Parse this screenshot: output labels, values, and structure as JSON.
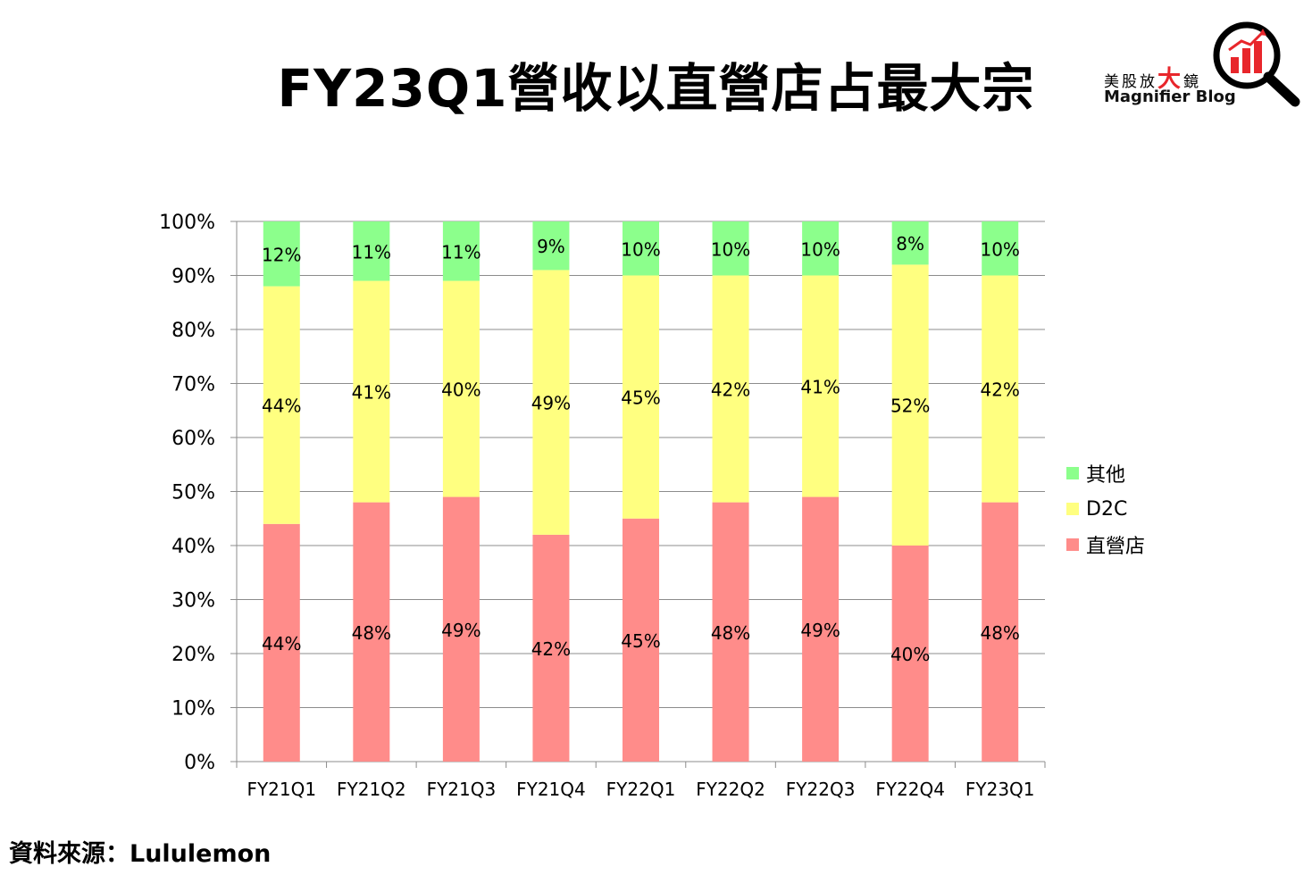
{
  "header": {
    "title": "FY23Q1營收以直營店占最大宗"
  },
  "logo": {
    "line1_a": "美股放",
    "line1_big": "大",
    "line1_b": "鏡",
    "line2": "Magnifier Blog",
    "icon": "magnifier-bar-chart-icon"
  },
  "colors": {
    "store": "#ff8c8a",
    "d2c": "#ffff80",
    "other": "#8cff8c"
  },
  "chart_data": {
    "type": "bar",
    "stacked": true,
    "categories": [
      "FY21Q1",
      "FY21Q2",
      "FY21Q3",
      "FY21Q4",
      "FY22Q1",
      "FY22Q2",
      "FY22Q3",
      "FY22Q4",
      "FY23Q1"
    ],
    "series": [
      {
        "name": "直營店",
        "color": "#ff8c8a",
        "values": [
          44,
          48,
          49,
          42,
          45,
          48,
          49,
          40,
          48
        ],
        "labels": [
          "44%",
          "48%",
          "49%",
          "42%",
          "45%",
          "48%",
          "49%",
          "40%",
          "48%"
        ]
      },
      {
        "name": "D2C",
        "color": "#ffff80",
        "values": [
          44,
          41,
          40,
          49,
          45,
          42,
          41,
          52,
          42
        ],
        "labels": [
          "44%",
          "41%",
          "40%",
          "49%",
          "45%",
          "42%",
          "41%",
          "52%",
          "42%"
        ]
      },
      {
        "name": "其他",
        "color": "#8cff8c",
        "values": [
          12,
          11,
          11,
          9,
          10,
          10,
          10,
          8,
          10
        ],
        "labels": [
          "12%",
          "11%",
          "11%",
          "9%",
          "10%",
          "10%",
          "10%",
          "8%",
          "10%"
        ]
      }
    ],
    "ylim": [
      0,
      100
    ],
    "yticks": [
      "0%",
      "10%",
      "20%",
      "30%",
      "40%",
      "50%",
      "60%",
      "70%",
      "80%",
      "90%",
      "100%"
    ],
    "grid": true,
    "legend_position": "right"
  },
  "legend": [
    {
      "label": "其他",
      "color": "#8cff8c"
    },
    {
      "label": "D2C",
      "color": "#ffff80"
    },
    {
      "label": "直營店",
      "color": "#ff8c8a"
    }
  ],
  "footer": {
    "source": "資料來源：Lululemon"
  }
}
